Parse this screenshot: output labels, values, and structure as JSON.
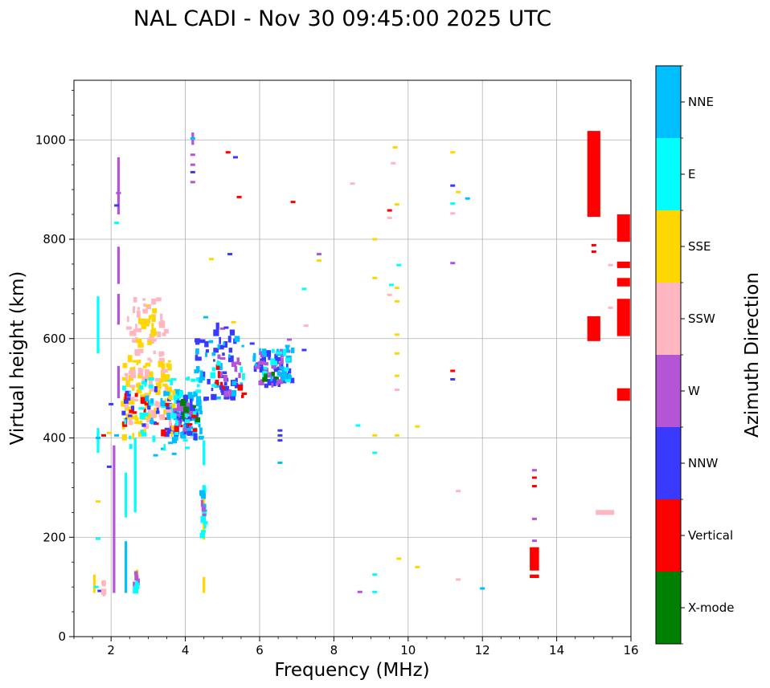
{
  "chart_data": {
    "type": "scatter",
    "title": "NAL CADI - Nov 30 09:45:00 2025 UTC",
    "xlabel": "Frequency (MHz)",
    "ylabel": "Virtual height (km)",
    "xlim": [
      1,
      16
    ],
    "ylim": [
      0,
      1120
    ],
    "xticks": [
      2,
      4,
      6,
      8,
      10,
      12,
      14,
      16
    ],
    "yticks": [
      0,
      200,
      400,
      600,
      800,
      1000
    ],
    "grid": true,
    "colorbar": {
      "label": "Azimuth Direction",
      "categories": [
        {
          "name": "X-mode",
          "color": "#008000"
        },
        {
          "name": "Vertical",
          "color": "#ff0000"
        },
        {
          "name": "NNW",
          "color": "#3a3aff"
        },
        {
          "name": "W",
          "color": "#b455d6"
        },
        {
          "name": "SSW",
          "color": "#ffb6c1"
        },
        {
          "name": "SSE",
          "color": "#ffd700"
        },
        {
          "name": "E",
          "color": "#00ffff"
        },
        {
          "name": "NNE",
          "color": "#00bfff"
        }
      ]
    },
    "segments": [
      {
        "dir": "W",
        "f": 2.2,
        "h1": 850,
        "h2": 965
      },
      {
        "dir": "W",
        "f": 2.2,
        "h1": 710,
        "h2": 785
      },
      {
        "dir": "W",
        "f": 2.2,
        "h1": 628,
        "h2": 690
      },
      {
        "dir": "W",
        "f": 2.2,
        "h1": 480,
        "h2": 545
      },
      {
        "dir": "W",
        "f": 2.08,
        "h1": 88,
        "h2": 385
      },
      {
        "dir": "E",
        "f": 1.65,
        "h1": 570,
        "h2": 685
      },
      {
        "dir": "E",
        "f": 1.65,
        "h1": 370,
        "h2": 420
      },
      {
        "dir": "E",
        "f": 2.4,
        "h1": 240,
        "h2": 330
      },
      {
        "dir": "NNE",
        "f": 2.4,
        "h1": 88,
        "h2": 192
      },
      {
        "dir": "E",
        "f": 2.65,
        "h1": 250,
        "h2": 400
      },
      {
        "dir": "SSE",
        "f": 2.7,
        "h1": 90,
        "h2": 135
      },
      {
        "dir": "SSE",
        "f": 1.55,
        "h1": 88,
        "h2": 125
      },
      {
        "dir": "SSE",
        "f": 4.5,
        "h1": 195,
        "h2": 300
      },
      {
        "dir": "E",
        "f": 4.5,
        "h1": 345,
        "h2": 395
      },
      {
        "dir": "SSE",
        "f": 4.5,
        "h1": 88,
        "h2": 120
      },
      {
        "dir": "W",
        "f": 4.2,
        "h1": 990,
        "h2": 1015
      },
      {
        "dir": "Vertical",
        "f": 15.0,
        "h1": 845,
        "h2": 1018,
        "w": 0.35
      },
      {
        "dir": "Vertical",
        "f": 15.0,
        "h1": 595,
        "h2": 645,
        "w": 0.35
      },
      {
        "dir": "Vertical",
        "f": 15.8,
        "h1": 795,
        "h2": 850,
        "w": 0.35
      },
      {
        "dir": "Vertical",
        "f": 15.8,
        "h1": 605,
        "h2": 680,
        "w": 0.35
      },
      {
        "dir": "Vertical",
        "f": 15.8,
        "h1": 742,
        "h2": 755,
        "w": 0.35
      },
      {
        "dir": "Vertical",
        "f": 15.8,
        "h1": 705,
        "h2": 722,
        "w": 0.35
      },
      {
        "dir": "Vertical",
        "f": 15.8,
        "h1": 475,
        "h2": 500,
        "w": 0.35
      },
      {
        "dir": "Vertical",
        "f": 13.4,
        "h1": 133,
        "h2": 180,
        "w": 0.25
      },
      {
        "dir": "Vertical",
        "f": 13.4,
        "h1": 118,
        "h2": 125,
        "w": 0.25
      },
      {
        "dir": "SSW",
        "f": 15.3,
        "h1": 245,
        "h2": 255,
        "w": 0.5
      }
    ],
    "points": [
      {
        "dir": "W",
        "f": 4.2,
        "h": 970
      },
      {
        "dir": "W",
        "f": 4.2,
        "h": 950
      },
      {
        "dir": "NNW",
        "f": 4.2,
        "h": 935
      },
      {
        "dir": "W",
        "f": 4.2,
        "h": 915
      },
      {
        "dir": "Vertical",
        "f": 5.15,
        "h": 975
      },
      {
        "dir": "NNW",
        "f": 5.35,
        "h": 965
      },
      {
        "dir": "Vertical",
        "f": 5.45,
        "h": 885
      },
      {
        "dir": "Vertical",
        "f": 6.9,
        "h": 875
      },
      {
        "dir": "SSE",
        "f": 4.7,
        "h": 760
      },
      {
        "dir": "NNW",
        "f": 5.2,
        "h": 770
      },
      {
        "dir": "W",
        "f": 7.6,
        "h": 770
      },
      {
        "dir": "SSE",
        "f": 7.6,
        "h": 757
      },
      {
        "dir": "E",
        "f": 7.2,
        "h": 700
      },
      {
        "dir": "SSW",
        "f": 8.5,
        "h": 912
      },
      {
        "dir": "Vertical",
        "f": 9.5,
        "h": 858
      },
      {
        "dir": "SSW",
        "f": 9.5,
        "h": 843
      },
      {
        "dir": "SSE",
        "f": 9.7,
        "h": 870
      },
      {
        "dir": "SSW",
        "f": 9.6,
        "h": 953
      },
      {
        "dir": "SSE",
        "f": 9.65,
        "h": 985
      },
      {
        "dir": "SSE",
        "f": 9.1,
        "h": 800
      },
      {
        "dir": "SSE",
        "f": 9.1,
        "h": 722
      },
      {
        "dir": "E",
        "f": 9.55,
        "h": 708
      },
      {
        "dir": "SSE",
        "f": 9.7,
        "h": 702
      },
      {
        "dir": "SSW",
        "f": 9.5,
        "h": 688
      },
      {
        "dir": "SSE",
        "f": 9.7,
        "h": 675
      },
      {
        "dir": "E",
        "f": 9.75,
        "h": 748
      },
      {
        "dir": "SSE",
        "f": 9.7,
        "h": 608
      },
      {
        "dir": "SSE",
        "f": 9.7,
        "h": 570
      },
      {
        "dir": "SSE",
        "f": 9.7,
        "h": 525
      },
      {
        "dir": "SSW",
        "f": 9.7,
        "h": 497
      },
      {
        "dir": "SSE",
        "f": 9.1,
        "h": 405
      },
      {
        "dir": "E",
        "f": 8.65,
        "h": 425
      },
      {
        "dir": "SSE",
        "f": 10.25,
        "h": 423
      },
      {
        "dir": "SSE",
        "f": 9.7,
        "h": 405
      },
      {
        "dir": "E",
        "f": 9.1,
        "h": 370
      },
      {
        "dir": "W",
        "f": 11.2,
        "h": 752
      },
      {
        "dir": "Vertical",
        "f": 11.2,
        "h": 535
      },
      {
        "dir": "NNW",
        "f": 11.2,
        "h": 518
      },
      {
        "dir": "SSE",
        "f": 11.2,
        "h": 975
      },
      {
        "dir": "NNW",
        "f": 11.2,
        "h": 908
      },
      {
        "dir": "SSE",
        "f": 11.35,
        "h": 895
      },
      {
        "dir": "NNE",
        "f": 11.6,
        "h": 882
      },
      {
        "dir": "E",
        "f": 11.2,
        "h": 872
      },
      {
        "dir": "SSW",
        "f": 11.2,
        "h": 852
      },
      {
        "dir": "W",
        "f": 8.7,
        "h": 90
      },
      {
        "dir": "E",
        "f": 9.1,
        "h": 90
      },
      {
        "dir": "E",
        "f": 9.1,
        "h": 125
      },
      {
        "dir": "SSE",
        "f": 9.75,
        "h": 157
      },
      {
        "dir": "SSE",
        "f": 10.25,
        "h": 140
      },
      {
        "dir": "SSW",
        "f": 11.35,
        "h": 115
      },
      {
        "dir": "NNE",
        "f": 12.0,
        "h": 97
      },
      {
        "dir": "SSW",
        "f": 11.35,
        "h": 293
      },
      {
        "dir": "W",
        "f": 13.4,
        "h": 335
      },
      {
        "dir": "Vertical",
        "f": 13.4,
        "h": 320
      },
      {
        "dir": "Vertical",
        "f": 13.4,
        "h": 303
      },
      {
        "dir": "W",
        "f": 13.4,
        "h": 237
      },
      {
        "dir": "W",
        "f": 13.4,
        "h": 193
      },
      {
        "dir": "Vertical",
        "f": 15.0,
        "h": 788
      },
      {
        "dir": "Vertical",
        "f": 15.0,
        "h": 775
      },
      {
        "dir": "SSW",
        "f": 15.45,
        "h": 748
      },
      {
        "dir": "SSW",
        "f": 15.45,
        "h": 662
      },
      {
        "dir": "NNW",
        "f": 2.15,
        "h": 868
      },
      {
        "dir": "E",
        "f": 2.15,
        "h": 833
      },
      {
        "dir": "W",
        "f": 2.2,
        "h": 893
      },
      {
        "dir": "NNE",
        "f": 1.65,
        "h": 400
      },
      {
        "dir": "E",
        "f": 1.65,
        "h": 197
      },
      {
        "dir": "SSE",
        "f": 1.65,
        "h": 272
      },
      {
        "dir": "NNW",
        "f": 1.7,
        "h": 92
      },
      {
        "dir": "E",
        "f": 1.6,
        "h": 100
      },
      {
        "dir": "SSE",
        "f": 1.8,
        "h": 108
      },
      {
        "dir": "SSE",
        "f": 1.95,
        "h": 410
      },
      {
        "dir": "NNW",
        "f": 1.95,
        "h": 342
      },
      {
        "dir": "NNW",
        "f": 2.0,
        "h": 468
      },
      {
        "dir": "Vertical",
        "f": 1.8,
        "h": 405
      },
      {
        "dir": "NNE",
        "f": 2.15,
        "h": 405
      },
      {
        "dir": "NNE",
        "f": 3.7,
        "h": 368
      },
      {
        "dir": "E",
        "f": 4.05,
        "h": 380
      },
      {
        "dir": "NNE",
        "f": 3.4,
        "h": 378
      },
      {
        "dir": "NNE",
        "f": 3.2,
        "h": 365
      },
      {
        "dir": "E",
        "f": 4.0,
        "h": 395
      },
      {
        "dir": "NNE",
        "f": 3.6,
        "h": 390
      },
      {
        "dir": "NNW",
        "f": 6.55,
        "h": 415
      },
      {
        "dir": "NNW",
        "f": 6.55,
        "h": 405
      },
      {
        "dir": "NNW",
        "f": 6.55,
        "h": 395
      },
      {
        "dir": "NNE",
        "f": 6.55,
        "h": 350
      },
      {
        "dir": "NNE",
        "f": 4.55,
        "h": 643
      },
      {
        "dir": "SSE",
        "f": 5.3,
        "h": 633
      },
      {
        "dir": "W",
        "f": 5.0,
        "h": 620
      },
      {
        "dir": "NNW",
        "f": 5.1,
        "h": 622
      },
      {
        "dir": "NNW",
        "f": 5.8,
        "h": 590
      },
      {
        "dir": "W",
        "f": 6.8,
        "h": 598
      },
      {
        "dir": "SSW",
        "f": 7.25,
        "h": 626
      },
      {
        "dir": "NNW",
        "f": 7.2,
        "h": 577
      },
      {
        "dir": "NNE",
        "f": 6.75,
        "h": 585
      },
      {
        "dir": "NNE",
        "f": 4.2,
        "h": 1003
      }
    ],
    "clusters": [
      {
        "dir": "NNE",
        "f1": 3.7,
        "f2": 4.45,
        "h1": 395,
        "h2": 495,
        "n": 75,
        "seed": 11
      },
      {
        "dir": "NNW",
        "f1": 3.5,
        "f2": 4.3,
        "h1": 400,
        "h2": 480,
        "n": 40,
        "seed": 12
      },
      {
        "dir": "W",
        "f1": 3.6,
        "f2": 4.2,
        "h1": 410,
        "h2": 470,
        "n": 18,
        "seed": 13
      },
      {
        "dir": "E",
        "f1": 3.4,
        "f2": 4.4,
        "h1": 400,
        "h2": 520,
        "n": 25,
        "seed": 14
      },
      {
        "dir": "Vertical",
        "f1": 3.2,
        "f2": 4.3,
        "h1": 410,
        "h2": 470,
        "n": 10,
        "seed": 15
      },
      {
        "dir": "X-mode",
        "f1": 3.9,
        "f2": 4.4,
        "h1": 430,
        "h2": 480,
        "n": 6,
        "seed": 16
      },
      {
        "dir": "SSE",
        "f1": 2.3,
        "f2": 3.7,
        "h1": 400,
        "h2": 560,
        "n": 85,
        "seed": 21
      },
      {
        "dir": "SSW",
        "f1": 2.4,
        "f2": 3.6,
        "h1": 420,
        "h2": 680,
        "n": 80,
        "seed": 22
      },
      {
        "dir": "SSE",
        "f1": 2.7,
        "f2": 3.2,
        "h1": 580,
        "h2": 670,
        "n": 20,
        "seed": 23
      },
      {
        "dir": "NNW",
        "f1": 2.3,
        "f2": 3.3,
        "h1": 420,
        "h2": 500,
        "n": 14,
        "seed": 24
      },
      {
        "dir": "Vertical",
        "f1": 2.3,
        "f2": 3.3,
        "h1": 420,
        "h2": 500,
        "n": 8,
        "seed": 25
      },
      {
        "dir": "E",
        "f1": 2.3,
        "f2": 3.5,
        "h1": 380,
        "h2": 520,
        "n": 18,
        "seed": 26
      },
      {
        "dir": "NNE",
        "f1": 2.9,
        "f2": 3.6,
        "h1": 430,
        "h2": 520,
        "n": 10,
        "seed": 27
      },
      {
        "dir": "NNW",
        "f1": 4.3,
        "f2": 5.4,
        "h1": 470,
        "h2": 630,
        "n": 45,
        "seed": 31
      },
      {
        "dir": "NNE",
        "f1": 4.3,
        "f2": 5.6,
        "h1": 480,
        "h2": 600,
        "n": 25,
        "seed": 32
      },
      {
        "dir": "W",
        "f1": 4.8,
        "f2": 5.5,
        "h1": 480,
        "h2": 580,
        "n": 12,
        "seed": 33
      },
      {
        "dir": "Vertical",
        "f1": 4.8,
        "f2": 5.6,
        "h1": 480,
        "h2": 560,
        "n": 8,
        "seed": 34
      },
      {
        "dir": "E",
        "f1": 4.6,
        "f2": 5.6,
        "h1": 500,
        "h2": 560,
        "n": 8,
        "seed": 35
      },
      {
        "dir": "NNW",
        "f1": 5.8,
        "f2": 6.9,
        "h1": 505,
        "h2": 570,
        "n": 30,
        "seed": 41
      },
      {
        "dir": "W",
        "f1": 5.9,
        "f2": 6.8,
        "h1": 505,
        "h2": 575,
        "n": 25,
        "seed": 42
      },
      {
        "dir": "NNE",
        "f1": 5.8,
        "f2": 6.9,
        "h1": 510,
        "h2": 590,
        "n": 20,
        "seed": 43
      },
      {
        "dir": "E",
        "f1": 6.0,
        "f2": 6.9,
        "h1": 515,
        "h2": 580,
        "n": 12,
        "seed": 44
      },
      {
        "dir": "X-mode",
        "f1": 6.0,
        "f2": 6.5,
        "h1": 515,
        "h2": 545,
        "n": 4,
        "seed": 45
      },
      {
        "dir": "E",
        "f1": 4.45,
        "f2": 4.55,
        "h1": 200,
        "h2": 300,
        "n": 8,
        "seed": 51
      },
      {
        "dir": "NNE",
        "f1": 4.45,
        "f2": 4.55,
        "h1": 230,
        "h2": 290,
        "n": 5,
        "seed": 52
      },
      {
        "dir": "W",
        "f1": 4.45,
        "f2": 4.55,
        "h1": 240,
        "h2": 280,
        "n": 3,
        "seed": 53
      },
      {
        "dir": "W",
        "f1": 2.6,
        "f2": 2.75,
        "h1": 90,
        "h2": 130,
        "n": 4,
        "seed": 54
      },
      {
        "dir": "E",
        "f1": 2.6,
        "f2": 2.75,
        "h1": 90,
        "h2": 130,
        "n": 4,
        "seed": 55
      },
      {
        "dir": "SSW",
        "f1": 1.75,
        "f2": 1.85,
        "h1": 88,
        "h2": 110,
        "n": 3,
        "seed": 56
      }
    ]
  }
}
